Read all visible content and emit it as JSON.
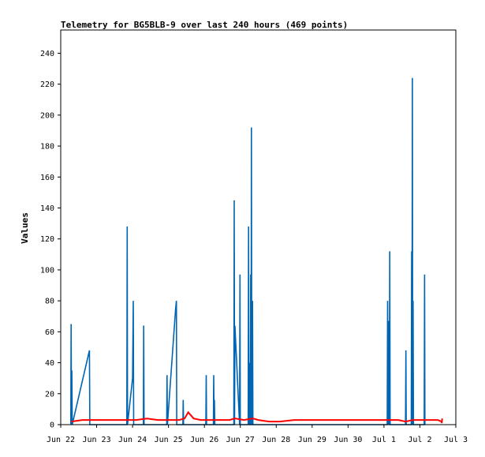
{
  "chart_data": {
    "type": "line",
    "title": "Telemetry for BG5BLB-9 over last 240 hours (469 points)",
    "xlabel": "",
    "ylabel": "Values",
    "x_ticks": [
      "Jun 22",
      "Jun 23",
      "Jun 24",
      "Jun 25",
      "Jun 26",
      "Jun 27",
      "Jun 28",
      "Jun 29",
      "Jun 30",
      "Jul 1",
      "Jul 2",
      "Jul 3"
    ],
    "y_ticks": [
      0,
      20,
      40,
      60,
      80,
      100,
      120,
      140,
      160,
      180,
      200,
      220,
      240
    ],
    "xlim": [
      0,
      11
    ],
    "ylim": [
      0,
      255
    ],
    "grid": false,
    "legend": "none",
    "series": [
      {
        "color": "#0066b3",
        "x": [
          0.28,
          0.29,
          0.3,
          0.31,
          0.32,
          0.8,
          0.81,
          0.82,
          1.84,
          1.85,
          1.86,
          2.0,
          2.02,
          2.03,
          2.04,
          2.05,
          2.3,
          2.31,
          2.32,
          2.95,
          2.96,
          2.97,
          3.2,
          3.22,
          3.23,
          3.24,
          3.25,
          3.4,
          3.41,
          3.42,
          4.04,
          4.05,
          4.06,
          4.25,
          4.26,
          4.27,
          4.28,
          4.29,
          4.82,
          4.83,
          4.84,
          4.85,
          4.98,
          4.99,
          5.0,
          5.22,
          5.23,
          5.24,
          5.25,
          5.26,
          5.28,
          5.29,
          5.3,
          5.31,
          5.32,
          5.33,
          5.34,
          5.35,
          5.36,
          5.37,
          9.09,
          9.1,
          9.11,
          9.12,
          9.13,
          9.14,
          9.15,
          9.16,
          9.17,
          9.6,
          9.61,
          9.62,
          9.76,
          9.77,
          9.78,
          9.79,
          9.8,
          9.81,
          9.82,
          9.83,
          10.12,
          10.13,
          10.14
        ],
        "y": [
          0,
          65,
          0,
          35,
          0,
          48,
          0,
          0,
          0,
          128,
          0,
          30,
          80,
          0,
          0,
          0,
          0,
          64,
          0,
          0,
          32,
          0,
          75,
          80,
          0,
          0,
          0,
          0,
          16,
          0,
          0,
          32,
          0,
          0,
          32,
          0,
          16,
          0,
          0,
          145,
          0,
          64,
          0,
          97,
          0,
          0,
          128,
          0,
          40,
          0,
          0,
          97,
          0,
          192,
          0,
          0,
          80,
          0,
          0,
          0,
          0,
          80,
          0,
          67,
          0,
          40,
          0,
          112,
          0,
          0,
          48,
          0,
          0,
          112,
          0,
          224,
          0,
          80,
          0,
          0,
          0,
          97,
          0
        ]
      },
      {
        "color": "#ff0000",
        "x": [
          0.3,
          0.6,
          0.9,
          1.2,
          1.5,
          1.8,
          2.1,
          2.4,
          2.7,
          3.0,
          3.3,
          3.45,
          3.55,
          3.7,
          3.9,
          4.1,
          4.4,
          4.7,
          4.85,
          5.1,
          5.35,
          5.5,
          5.8,
          6.1,
          6.5,
          7.0,
          7.5,
          8.0,
          8.5,
          9.0,
          9.4,
          9.6,
          9.8,
          10.0,
          10.3,
          10.5,
          10.6,
          10.61,
          10.62
        ],
        "y": [
          2,
          3,
          3,
          3,
          3,
          3,
          3,
          4,
          3,
          3,
          3,
          4,
          8,
          4,
          3,
          3,
          3,
          3,
          4,
          3,
          4,
          3,
          2,
          2,
          3,
          3,
          3,
          3,
          3,
          3,
          3,
          2,
          3,
          3,
          3,
          3,
          2,
          1,
          4
        ]
      },
      {
        "color": "#000000",
        "x": [
          0.28,
          10.62
        ],
        "y": [
          0,
          0
        ]
      }
    ]
  }
}
